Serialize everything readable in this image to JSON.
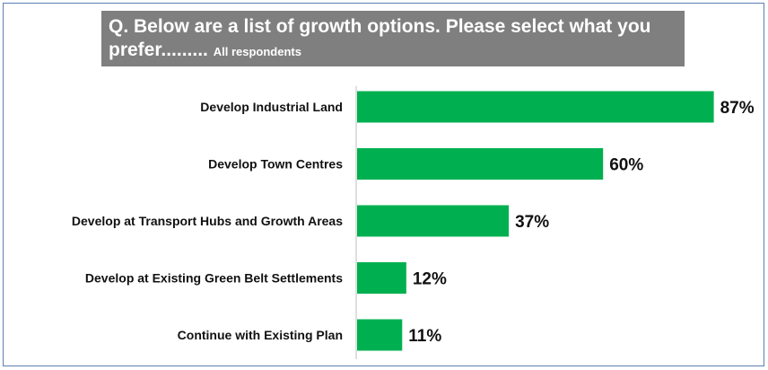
{
  "title": {
    "main": "Q. Below are a list of growth options. Please select what you prefer.........",
    "subtitle": "All respondents"
  },
  "colors": {
    "bar": "#00b050",
    "title_bg": "#7f7f7f",
    "title_text": "#ffffff",
    "label_text": "#111111",
    "frame": "#5b7fb3",
    "axis": "#bfbfbf"
  },
  "chart_data": {
    "type": "bar",
    "orientation": "horizontal",
    "title": "Q. Below are a list of growth options. Please select what you prefer.........",
    "subtitle": "All respondents",
    "categories": [
      "Develop Industrial Land",
      "Develop Town Centres",
      "Develop at Transport Hubs and Growth Areas",
      "Develop at Existing Green Belt Settlements",
      "Continue with Existing Plan"
    ],
    "values": [
      87,
      60,
      37,
      12,
      11
    ],
    "value_labels": [
      "87%",
      "60%",
      "37%",
      "12%",
      "11%"
    ],
    "unit": "%",
    "xlim": [
      0,
      100
    ],
    "grid": false,
    "legend": "none"
  }
}
